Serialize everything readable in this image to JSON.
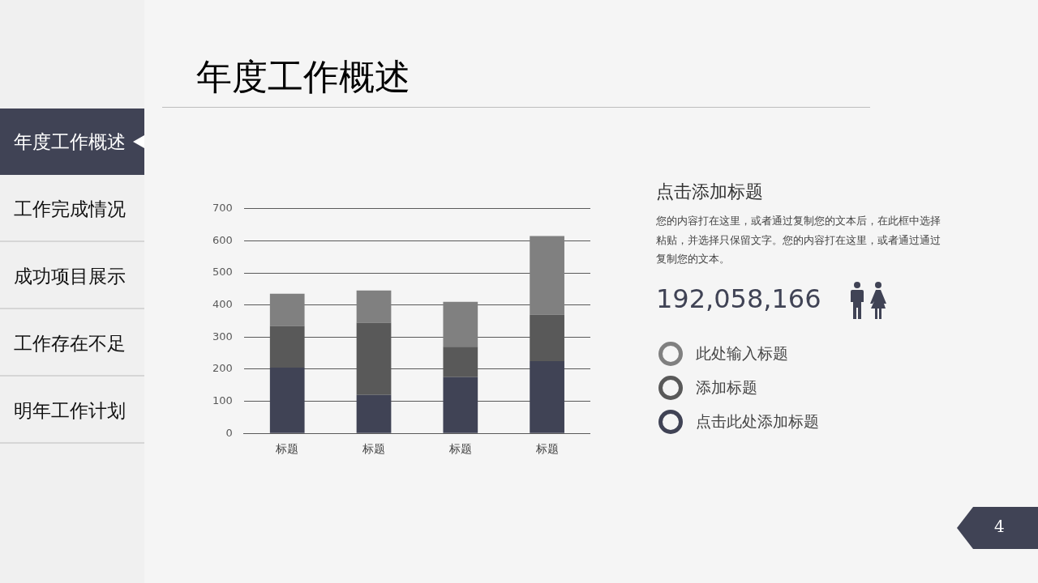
{
  "chart_data": {
    "type": "bar",
    "title": "年度工作概述",
    "categories": [
      "标题",
      "标题",
      "标题",
      "标题"
    ],
    "stacked": true,
    "series": [
      {
        "name": "点击此处添加标题",
        "color": "#404355",
        "values": [
          205,
          120,
          175,
          225
        ]
      },
      {
        "name": "添加标题",
        "color": "#595959",
        "values": [
          130,
          225,
          95,
          145
        ]
      },
      {
        "name": "此处输入标题",
        "color": "#808080",
        "values": [
          100,
          100,
          140,
          245
        ]
      }
    ],
    "ylim": [
      0,
      700
    ],
    "yticks": [
      0,
      100,
      200,
      300,
      400,
      500,
      600,
      700
    ],
    "grid": "y",
    "legend": "right",
    "annotations": [
      "点击添加标题",
      "您的内容打在这里，或者通过复制您的文本后，在此框中选择粘贴，并选择只保留文字。您的内容打在这里，或者通过通过复制您的文本。",
      "192,058,166",
      "年度工作概述",
      "工作完成情况",
      "成功项目展示",
      "工作存在不足",
      "明年工作计划",
      "4"
    ]
  }
}
